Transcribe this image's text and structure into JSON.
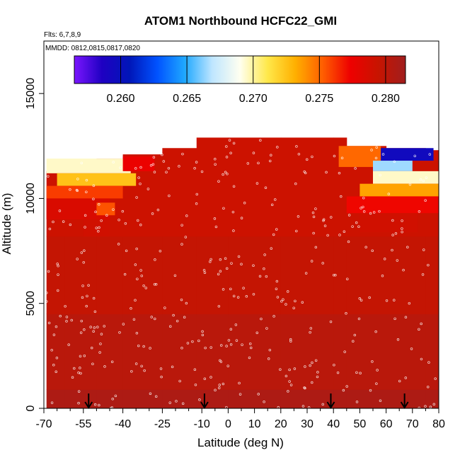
{
  "chart_data": {
    "type": "heatmap",
    "title": "ATOM1 Northbound HCFC22_GMI",
    "flights_label": "Flts: 6,7,8,9",
    "dates_label": "MMDD: 0812,0815,0817,0820",
    "xlabel": "Latitude (deg N)",
    "ylabel": "Altitude (m)",
    "xlim": [
      -70,
      80
    ],
    "ylim": [
      0,
      17500
    ],
    "x_ticks": [
      -70,
      -55,
      -40,
      -25,
      -10,
      0,
      10,
      20,
      30,
      40,
      50,
      60,
      70,
      80
    ],
    "x_tick_labels": [
      "-70",
      "-55",
      "-40",
      "-25",
      "-10",
      "0",
      "10",
      "20",
      "30",
      "40",
      "50",
      "60",
      "70",
      "80"
    ],
    "x_minor_ticks": [
      -65,
      -60,
      -50,
      -45,
      -35,
      -30,
      -20,
      -15,
      -5,
      5,
      15,
      25,
      35,
      45,
      55,
      65,
      75
    ],
    "y_ticks": [
      0,
      5000,
      10000,
      15000
    ],
    "y_tick_labels": [
      "0",
      "5000",
      "10000",
      "15000"
    ],
    "colorbar": {
      "range": [
        0.2565,
        0.2815
      ],
      "ticks": [
        0.26,
        0.265,
        0.27,
        0.275,
        0.28
      ],
      "tick_labels": [
        "0.260",
        "0.265",
        "0.270",
        "0.275",
        "0.280"
      ],
      "colors": [
        "#7b16ff",
        "#1f00c2",
        "#0016b8",
        "#0052ff",
        "#1fa8ff",
        "#bfe6ff",
        "#fffff0",
        "#ffe84a",
        "#ffb000",
        "#ff5e00",
        "#ee0000",
        "#c81400",
        "#a01e1e"
      ]
    },
    "flight_markers_lat": [
      -53,
      -9,
      39,
      67
    ],
    "curtain": {
      "lat_range": [
        -69,
        80
      ],
      "columns": [
        {
          "lat": -69,
          "top": 11300
        },
        {
          "lat": -62,
          "top": 11800
        },
        {
          "lat": -50,
          "top": 11900
        },
        {
          "lat": -40,
          "top": 12100
        },
        {
          "lat": -25,
          "top": 12400
        },
        {
          "lat": -12,
          "top": 12900
        },
        {
          "lat": 0,
          "top": 12900
        },
        {
          "lat": 20,
          "top": 12900
        },
        {
          "lat": 40,
          "top": 12900
        },
        {
          "lat": 45,
          "top": 12500
        },
        {
          "lat": 60,
          "top": 12400
        },
        {
          "lat": 75,
          "top": 12300
        },
        {
          "lat": 80,
          "top": 10000
        }
      ],
      "value_layers": [
        {
          "alt_from": 0,
          "alt_to": 900,
          "value": 0.2808
        },
        {
          "alt_from": 900,
          "alt_to": 4500,
          "value": 0.2802
        },
        {
          "alt_from": 4500,
          "alt_to": 8200,
          "value": 0.2796
        },
        {
          "alt_from": 8200,
          "alt_to": 12900,
          "value": 0.2792
        }
      ],
      "anomalies": [
        {
          "lat_from": -69,
          "lat_to": -37,
          "alt_from": 11200,
          "alt_to": 11900,
          "value": 0.2695
        },
        {
          "lat_from": -65,
          "lat_to": -35,
          "alt_from": 10600,
          "alt_to": 11200,
          "value": 0.2725
        },
        {
          "lat_from": -69,
          "lat_to": -40,
          "alt_from": 10000,
          "alt_to": 10600,
          "value": 0.276
        },
        {
          "lat_from": -69,
          "lat_to": -45,
          "alt_from": 9000,
          "alt_to": 10000,
          "value": 0.2785
        },
        {
          "lat_from": -55,
          "lat_to": -45,
          "alt_from": 8200,
          "alt_to": 9000,
          "value": 0.279
        },
        {
          "lat_from": -50,
          "lat_to": -43,
          "alt_from": 9200,
          "alt_to": 9800,
          "value": 0.2755
        },
        {
          "lat_from": -40,
          "lat_to": -28,
          "alt_from": 11300,
          "alt_to": 12000,
          "value": 0.2775
        },
        {
          "lat_from": 42,
          "lat_to": 58,
          "alt_from": 11500,
          "alt_to": 12500,
          "value": 0.275
        },
        {
          "lat_from": 58,
          "lat_to": 78,
          "alt_from": 11800,
          "alt_to": 12400,
          "value": 0.2595
        },
        {
          "lat_from": 55,
          "lat_to": 70,
          "alt_from": 11300,
          "alt_to": 11800,
          "value": 0.2665
        },
        {
          "lat_from": 55,
          "lat_to": 80,
          "alt_from": 10700,
          "alt_to": 11300,
          "value": 0.2695
        },
        {
          "lat_from": 50,
          "lat_to": 80,
          "alt_from": 10100,
          "alt_to": 10700,
          "value": 0.2735
        },
        {
          "lat_from": 45,
          "lat_to": 80,
          "alt_from": 9300,
          "alt_to": 10100,
          "value": 0.2772
        },
        {
          "lat_from": 50,
          "lat_to": 72,
          "alt_from": 8400,
          "alt_to": 9300,
          "value": 0.279
        }
      ]
    }
  }
}
